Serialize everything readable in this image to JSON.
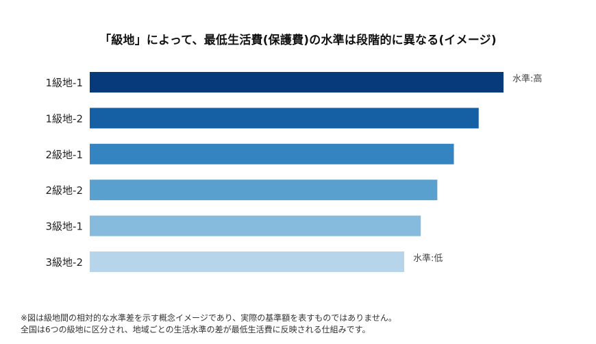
{
  "chart_data": {
    "type": "bar",
    "orientation": "horizontal",
    "title": "「級地」によって、最低生活費(保護費)の水準は段階的に異なる(イメージ)",
    "categories": [
      "1級地-1",
      "1級地-2",
      "2級地-1",
      "2級地-2",
      "3級地-1",
      "3級地-2"
    ],
    "values": [
      100,
      94,
      88,
      84,
      80,
      76
    ],
    "value_axis_visible": false,
    "grid": false,
    "annotations": [
      {
        "category": "1級地-1",
        "text": "水準:高"
      },
      {
        "category": "3級地-2",
        "text": "水準:低"
      }
    ],
    "colors": [
      "#073a7a",
      "#1560a5",
      "#3584c2",
      "#5aa0cf",
      "#86bbdd",
      "#b6d5ea"
    ]
  },
  "notes": [
    "※図は級地間の相対的な水準差を示す概念イメージであり、実際の基準額を表すものではありません。",
    "全国は6つの級地に区分され、地域ごとの生活水準の差が最低生活費に反映される仕組みです。"
  ]
}
